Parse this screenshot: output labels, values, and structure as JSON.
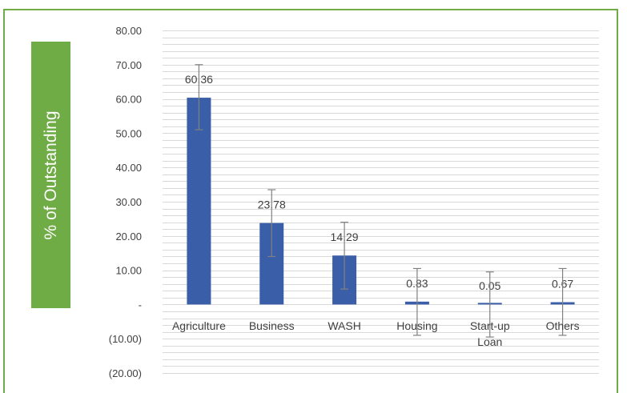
{
  "chart_data": {
    "type": "bar",
    "ylabel": "% of Outstanding",
    "xlabel": "",
    "title": "",
    "categories": [
      "Agriculture",
      "Business",
      "WASH",
      "Housing",
      "Start-up Loan",
      "Others"
    ],
    "category_lines": [
      [
        "Agriculture"
      ],
      [
        "Business"
      ],
      [
        "WASH"
      ],
      [
        "Housing"
      ],
      [
        "Start-up",
        "Loan"
      ],
      [
        "Others"
      ]
    ],
    "values": [
      60.36,
      23.78,
      14.29,
      0.83,
      0.05,
      0.67
    ],
    "data_labels": [
      "60.36",
      "23.78",
      "14.29",
      "0.83",
      "0.05",
      "0.67"
    ],
    "error_bars": [
      {
        "low": 51,
        "high": 70
      },
      {
        "low": 14,
        "high": 33.5
      },
      {
        "low": 4.5,
        "high": 24
      },
      {
        "low": -9,
        "high": 10.5
      },
      {
        "low": -9.5,
        "high": 9.5
      },
      {
        "low": -9,
        "high": 10.5
      }
    ],
    "ylim": [
      -20,
      80
    ],
    "yticks": [
      80,
      70,
      60,
      50,
      40,
      30,
      20,
      10,
      0,
      -10,
      -20
    ],
    "ytick_labels": [
      "80.00",
      "70.00",
      "60.00",
      "50.00",
      "40.00",
      "30.00",
      "20.00",
      "10.00",
      "-",
      "(10.00)",
      "(20.00)"
    ],
    "minor_grid_step": 2,
    "grid": true,
    "legend": "none",
    "colors": {
      "bar": "#3a5ea8",
      "grid": "#d9d9d9",
      "axis_label_box": "#6fac46",
      "frame": "#70ad47",
      "text": "#404040",
      "error_bar": "#808080"
    }
  }
}
